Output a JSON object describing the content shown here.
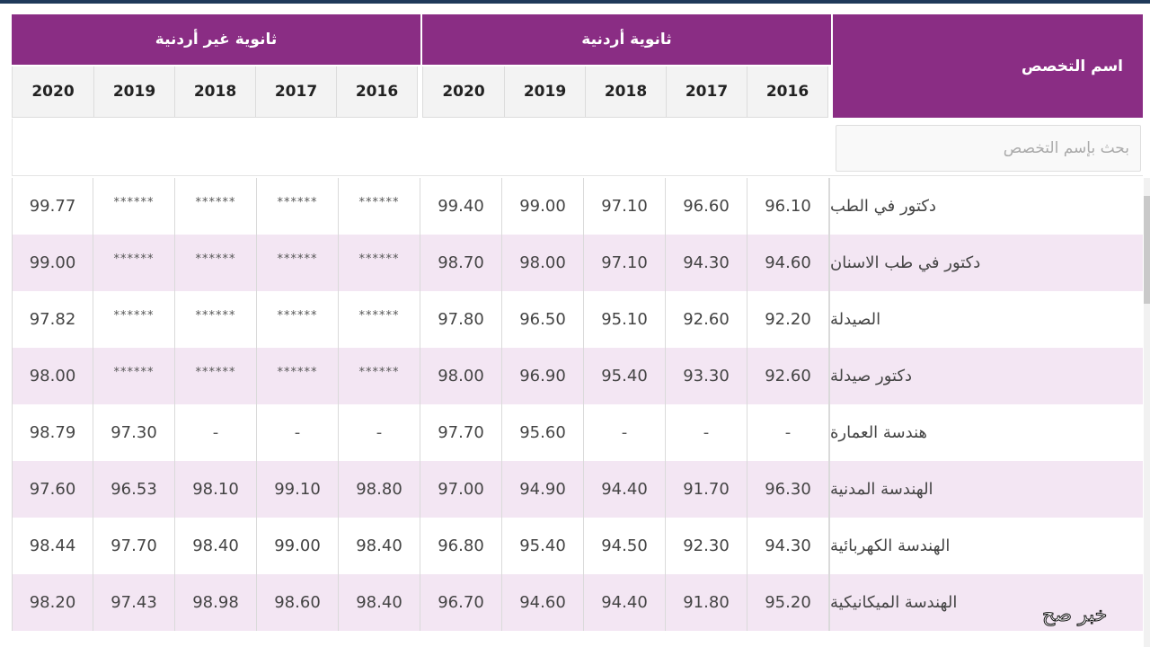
{
  "header": {
    "specialty_label": "اسم التخصص",
    "groups": [
      {
        "label": "ثانوية أردنية",
        "years": [
          "2016",
          "2017",
          "2018",
          "2019",
          "2020"
        ]
      },
      {
        "label": "ثانوية غير أردنية",
        "years": [
          "2016",
          "2017",
          "2018",
          "2019",
          "2020"
        ]
      }
    ]
  },
  "search": {
    "placeholder": "بحث بإسم التخصص",
    "value": ""
  },
  "rows": [
    {
      "name": "دكتور في الطب",
      "jo": [
        "96.10",
        "96.60",
        "97.10",
        "99.00",
        "99.40"
      ],
      "nonjo": [
        "******",
        "******",
        "******",
        "******",
        "99.77"
      ]
    },
    {
      "name": "دكتور في طب الاسنان",
      "jo": [
        "94.60",
        "94.30",
        "97.10",
        "98.00",
        "98.70"
      ],
      "nonjo": [
        "******",
        "******",
        "******",
        "******",
        "99.00"
      ]
    },
    {
      "name": "الصيدلة",
      "jo": [
        "92.20",
        "92.60",
        "95.10",
        "96.50",
        "97.80"
      ],
      "nonjo": [
        "******",
        "******",
        "******",
        "******",
        "97.82"
      ]
    },
    {
      "name": "دكتور صيدلة",
      "jo": [
        "92.60",
        "93.30",
        "95.40",
        "96.90",
        "98.00"
      ],
      "nonjo": [
        "******",
        "******",
        "******",
        "******",
        "98.00"
      ]
    },
    {
      "name": "هندسة العمارة",
      "jo": [
        "-",
        "-",
        "-",
        "95.60",
        "97.70"
      ],
      "nonjo": [
        "-",
        "-",
        "-",
        "97.30",
        "98.79"
      ]
    },
    {
      "name": "الهندسة المدنية",
      "jo": [
        "96.30",
        "91.70",
        "94.40",
        "94.90",
        "97.00"
      ],
      "nonjo": [
        "98.80",
        "99.10",
        "98.10",
        "96.53",
        "97.60"
      ]
    },
    {
      "name": "الهندسة الكهربائية",
      "jo": [
        "94.30",
        "92.30",
        "94.50",
        "95.40",
        "96.80"
      ],
      "nonjo": [
        "98.40",
        "99.00",
        "98.40",
        "97.70",
        "98.44"
      ]
    },
    {
      "name": "الهندسة الميكانيكية",
      "jo": [
        "95.20",
        "91.80",
        "94.40",
        "94.60",
        "96.70"
      ],
      "nonjo": [
        "98.40",
        "98.60",
        "98.98",
        "97.43",
        "98.20"
      ]
    }
  ],
  "colors": {
    "header_purple": "#8a2d84",
    "alt_row": "#f3e6f3",
    "year_header_bg": "#f3f3f3"
  },
  "watermark": "خبر صح"
}
